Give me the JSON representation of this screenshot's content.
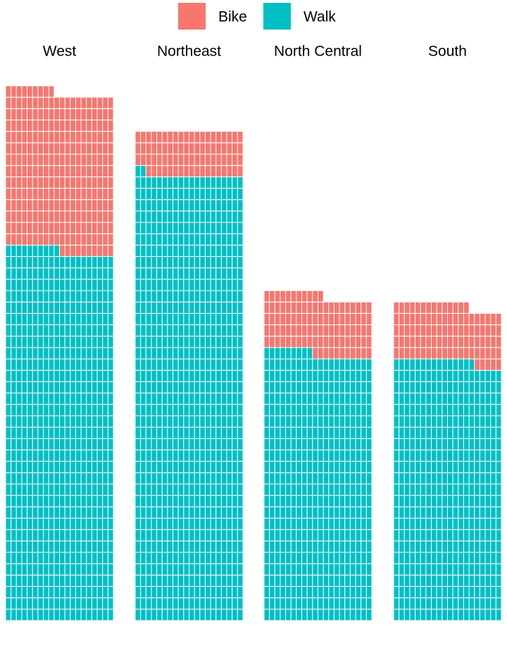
{
  "chart_data": {
    "type": "waffle",
    "categories": [
      "West",
      "Northeast",
      "North Central",
      "South"
    ],
    "series": [
      {
        "name": "Bike",
        "color": "#F8766D",
        "values": [
          279,
          78,
          102,
          99
        ]
      },
      {
        "name": "Walk",
        "color": "#00BFC4",
        "values": [
          650,
          782,
          469,
          455
        ]
      }
    ]
  }
}
